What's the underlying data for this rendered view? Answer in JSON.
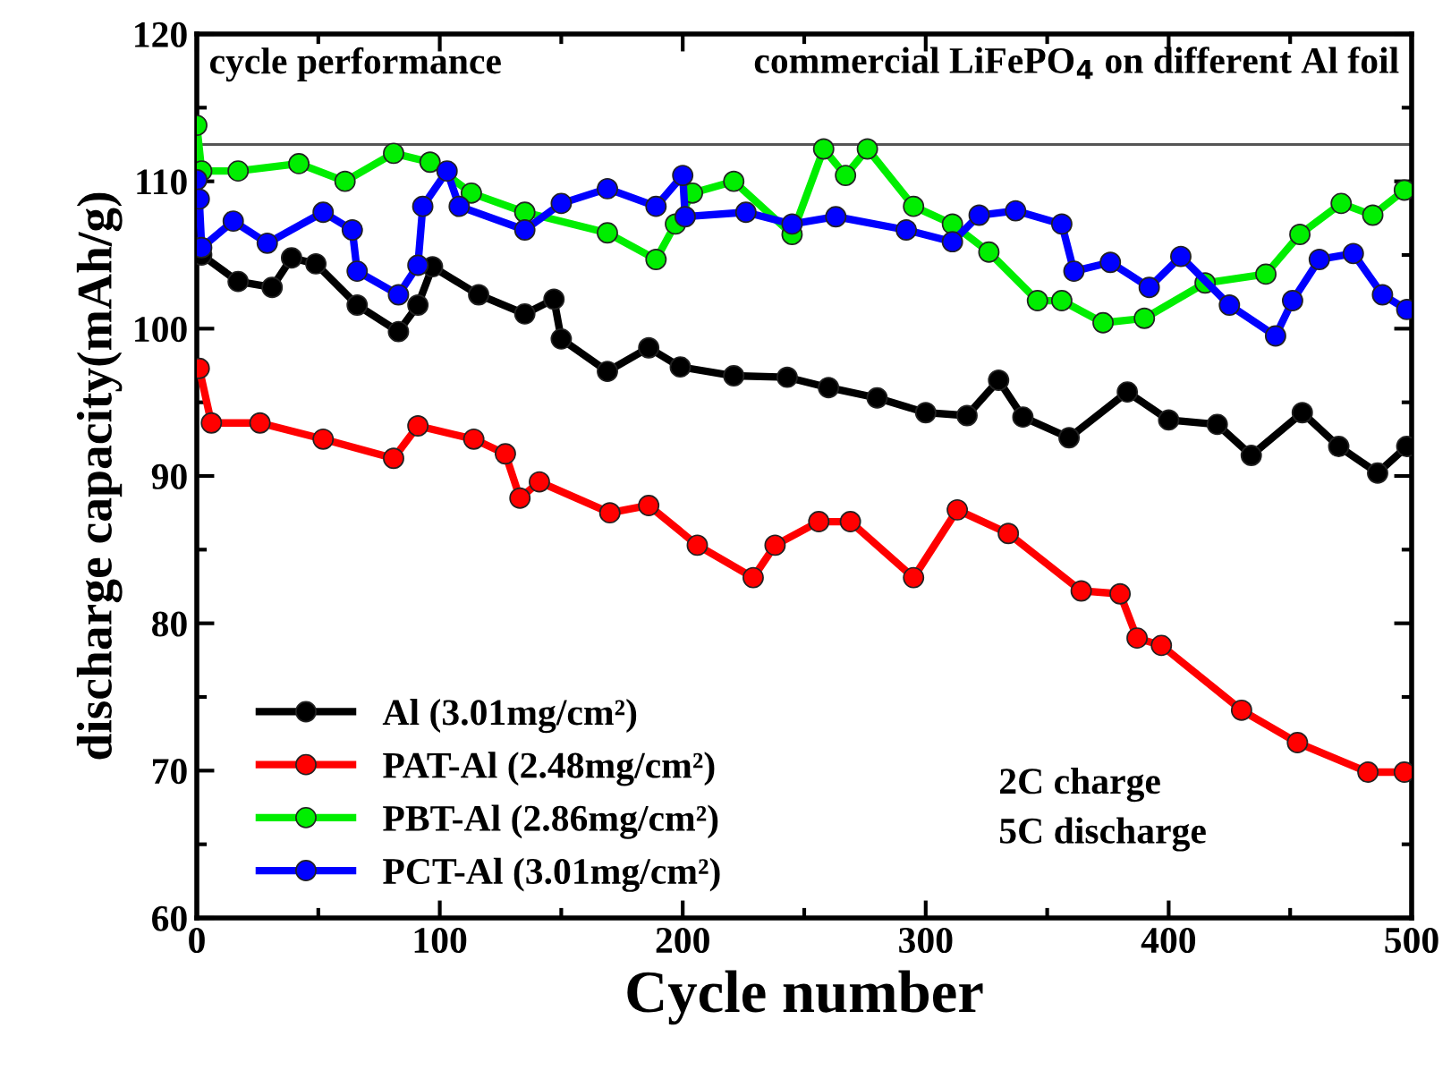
{
  "chart_data": {
    "type": "line",
    "xlabel": "Cycle number",
    "ylabel": "discharge capacity(mAh/g)",
    "xlim": [
      0,
      500
    ],
    "xticks": [
      0,
      100,
      200,
      300,
      400,
      500
    ],
    "ylim": [
      60,
      120
    ],
    "yticks": [
      60,
      70,
      80,
      90,
      100,
      110,
      120
    ],
    "marker": "circle",
    "line_style": "solid",
    "legend": "bottom left",
    "grid": false,
    "annotations": [
      "cycle performance",
      "commercial LiFePO$_{4}$ on different Al foil",
      "2C charge\n5C discharge"
    ],
    "ref_lines": [
      {
        "axis": "y",
        "value": 112.5,
        "color": "#555555"
      }
    ],
    "series": [
      {
        "name": "Al (3.01mg/cm²)",
        "color": "#000000",
        "x": [
          0,
          2,
          17,
          31,
          39,
          49,
          66,
          83,
          91,
          97,
          116,
          135,
          147,
          150,
          169,
          186,
          199,
          221,
          243,
          260,
          280,
          300,
          317,
          330,
          340,
          359,
          383,
          400,
          420,
          434,
          455,
          470,
          486,
          498
        ],
        "values": [
          105.5,
          105,
          103.2,
          102.8,
          104.8,
          104.4,
          101.6,
          99.8,
          101.6,
          104.2,
          102.3,
          101,
          102,
          99.3,
          97.1,
          98.7,
          97.4,
          96.8,
          96.7,
          96,
          95.3,
          94.3,
          94.1,
          96.5,
          94,
          92.6,
          95.7,
          93.8,
          93.5,
          91.4,
          94.3,
          92,
          90.2,
          92
        ]
      },
      {
        "name": "PAT-Al (2.48mg/cm²)",
        "color": "#ff0000",
        "x": [
          1,
          6,
          26,
          52,
          81,
          91,
          114,
          127,
          133,
          141,
          170,
          186,
          206,
          229,
          238,
          256,
          269,
          295,
          313,
          334,
          364,
          380,
          387,
          397,
          430,
          453,
          482,
          497
        ],
        "values": [
          97.3,
          93.6,
          93.6,
          92.5,
          91.2,
          93.4,
          92.5,
          91.5,
          88.5,
          89.6,
          87.5,
          88,
          85.3,
          83.1,
          85.3,
          86.9,
          86.9,
          83.1,
          87.7,
          86.1,
          82.2,
          82,
          79,
          78.5,
          74.1,
          71.9,
          69.9,
          69.9
        ]
      },
      {
        "name": "PBT-Al (2.86mg/cm²)",
        "color": "#00ee00",
        "x": [
          0,
          2,
          17,
          42,
          61,
          81,
          96,
          113,
          135,
          169,
          189,
          197,
          204,
          221,
          245,
          258,
          267,
          276,
          295,
          311,
          326,
          346,
          356,
          373,
          390,
          415,
          440,
          454,
          471,
          484,
          497
        ],
        "values": [
          113.8,
          110.7,
          110.7,
          111.2,
          110,
          111.9,
          111.3,
          109.2,
          107.9,
          106.5,
          104.7,
          107.1,
          109.2,
          110,
          106.4,
          112.2,
          110.4,
          112.2,
          108.3,
          107.1,
          105.2,
          101.9,
          101.9,
          100.4,
          100.7,
          103.1,
          103.7,
          106.4,
          108.5,
          107.7,
          109.4
        ]
      },
      {
        "name": "PCT-Al (3.01mg/cm²)",
        "color": "#0000ff",
        "x": [
          0,
          1,
          2,
          15,
          29,
          52,
          64,
          66,
          83,
          91,
          93,
          103,
          108,
          135,
          150,
          169,
          189,
          200,
          201,
          226,
          245,
          263,
          292,
          311,
          322,
          337,
          356,
          361,
          376,
          392,
          405,
          425,
          444,
          451,
          462,
          476,
          488,
          498
        ],
        "values": [
          110.1,
          108.8,
          105.5,
          107.3,
          105.8,
          107.9,
          106.7,
          103.9,
          102.3,
          104.3,
          108.3,
          110.7,
          108.3,
          106.7,
          108.5,
          109.5,
          108.3,
          110.4,
          107.6,
          107.9,
          107.1,
          107.6,
          106.7,
          105.9,
          107.7,
          108,
          107.1,
          103.9,
          104.5,
          102.8,
          104.9,
          101.6,
          99.5,
          101.9,
          104.7,
          105.1,
          102.3,
          101.3
        ]
      }
    ]
  }
}
